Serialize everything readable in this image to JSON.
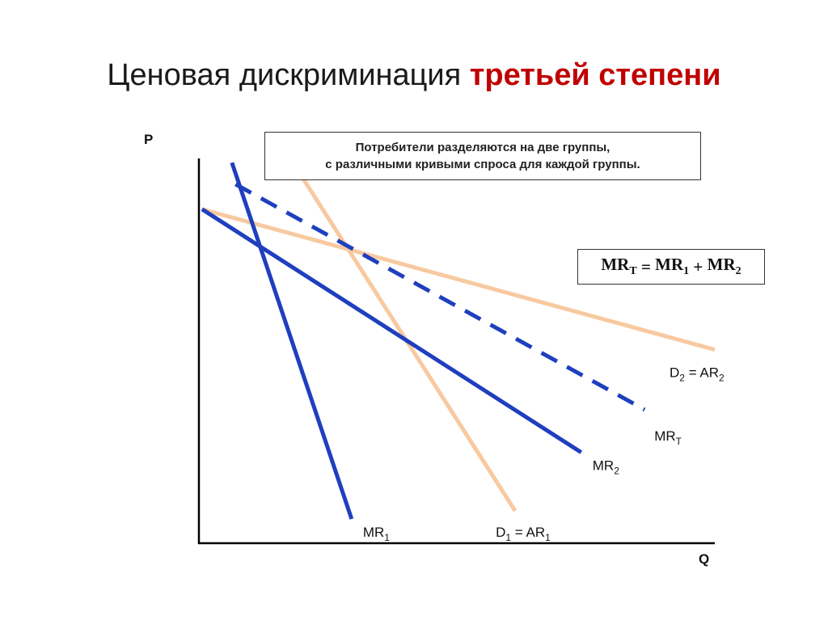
{
  "title": {
    "part1": "Ценовая дискриминация ",
    "part2": "третьей степени"
  },
  "note": {
    "line1": "Потребители разделяются на две группы,",
    "line2": "с различными кривыми спроса для каждой группы."
  },
  "formula": {
    "mr": "MR",
    "sub_t": "T",
    "eq": " = ",
    "sub_1": "1",
    "plus": " + ",
    "sub_2": "2"
  },
  "colors": {
    "demand": "#f8c9a0",
    "marginal_revenue": "#1f3fbf",
    "title_highlight": "#c00000"
  },
  "chart_data": {
    "type": "line",
    "xlabel": "Q",
    "ylabel": "P",
    "xlim": [
      0,
      100
    ],
    "ylim": [
      0,
      100
    ],
    "grid": false,
    "series": [
      {
        "name": "D1 = AR1",
        "label": "D",
        "sub": "1",
        "suffix": " = AR",
        "sub2": "1",
        "style": "demand",
        "dashed": false,
        "x": [
          15.7,
          61.3
        ],
        "y": [
          104.2,
          8.4
        ]
      },
      {
        "name": "D2 = AR2",
        "label": "D",
        "sub": "2",
        "suffix": " = AR",
        "sub2": "2",
        "style": "demand",
        "dashed": false,
        "x": [
          0.6,
          100
        ],
        "y": [
          86.8,
          50.3
        ]
      },
      {
        "name": "MR1",
        "label": "MR",
        "sub": "1",
        "suffix": "",
        "sub2": "",
        "style": "mr",
        "dashed": false,
        "x": [
          6.4,
          29.6
        ],
        "y": [
          98.9,
          6.3
        ]
      },
      {
        "name": "MR2",
        "label": "MR",
        "sub": "2",
        "suffix": "",
        "sub2": "",
        "style": "mr",
        "dashed": false,
        "x": [
          0.6,
          74.1
        ],
        "y": [
          86.8,
          23.6
        ]
      },
      {
        "name": "MRT",
        "label": "MR",
        "sub": "T",
        "suffix": "",
        "sub2": "",
        "style": "mr",
        "dashed": true,
        "x": [
          7.1,
          86.4
        ],
        "y": [
          93.3,
          34.7
        ]
      }
    ]
  }
}
